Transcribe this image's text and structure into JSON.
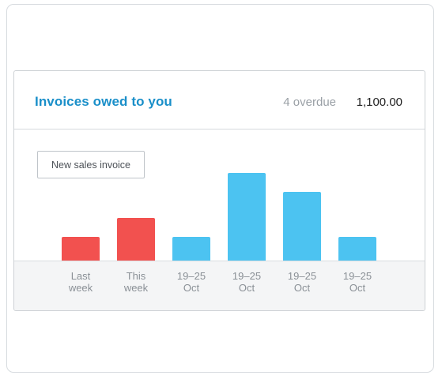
{
  "card": {
    "title": "Invoices owed to you",
    "overdue_text": "4 overdue",
    "amount": "1,100.00"
  },
  "actions": {
    "new_invoice_label": "New sales invoice"
  },
  "colors": {
    "overdue_bar": "#f2514f",
    "normal_bar": "#4cc3f1",
    "title": "#1a8fc9"
  },
  "chart_data": {
    "type": "bar",
    "categories": [
      "Last week",
      "This week",
      "19–25 Oct",
      "19–25 Oct",
      "19–25 Oct",
      "19–25 Oct"
    ],
    "tick_labels": [
      "Last\nweek",
      "This\nweek",
      "19–25\nOct",
      "19–25\nOct",
      "19–25\nOct",
      "19–25\nOct"
    ],
    "values": [
      1,
      1.8,
      1,
      3.7,
      2.9,
      1
    ],
    "bar_status": [
      "overdue",
      "overdue",
      "normal",
      "normal",
      "normal",
      "normal"
    ],
    "ylim": [
      0,
      3.8
    ],
    "grid": false,
    "title": "",
    "xlabel": "",
    "ylabel": ""
  }
}
